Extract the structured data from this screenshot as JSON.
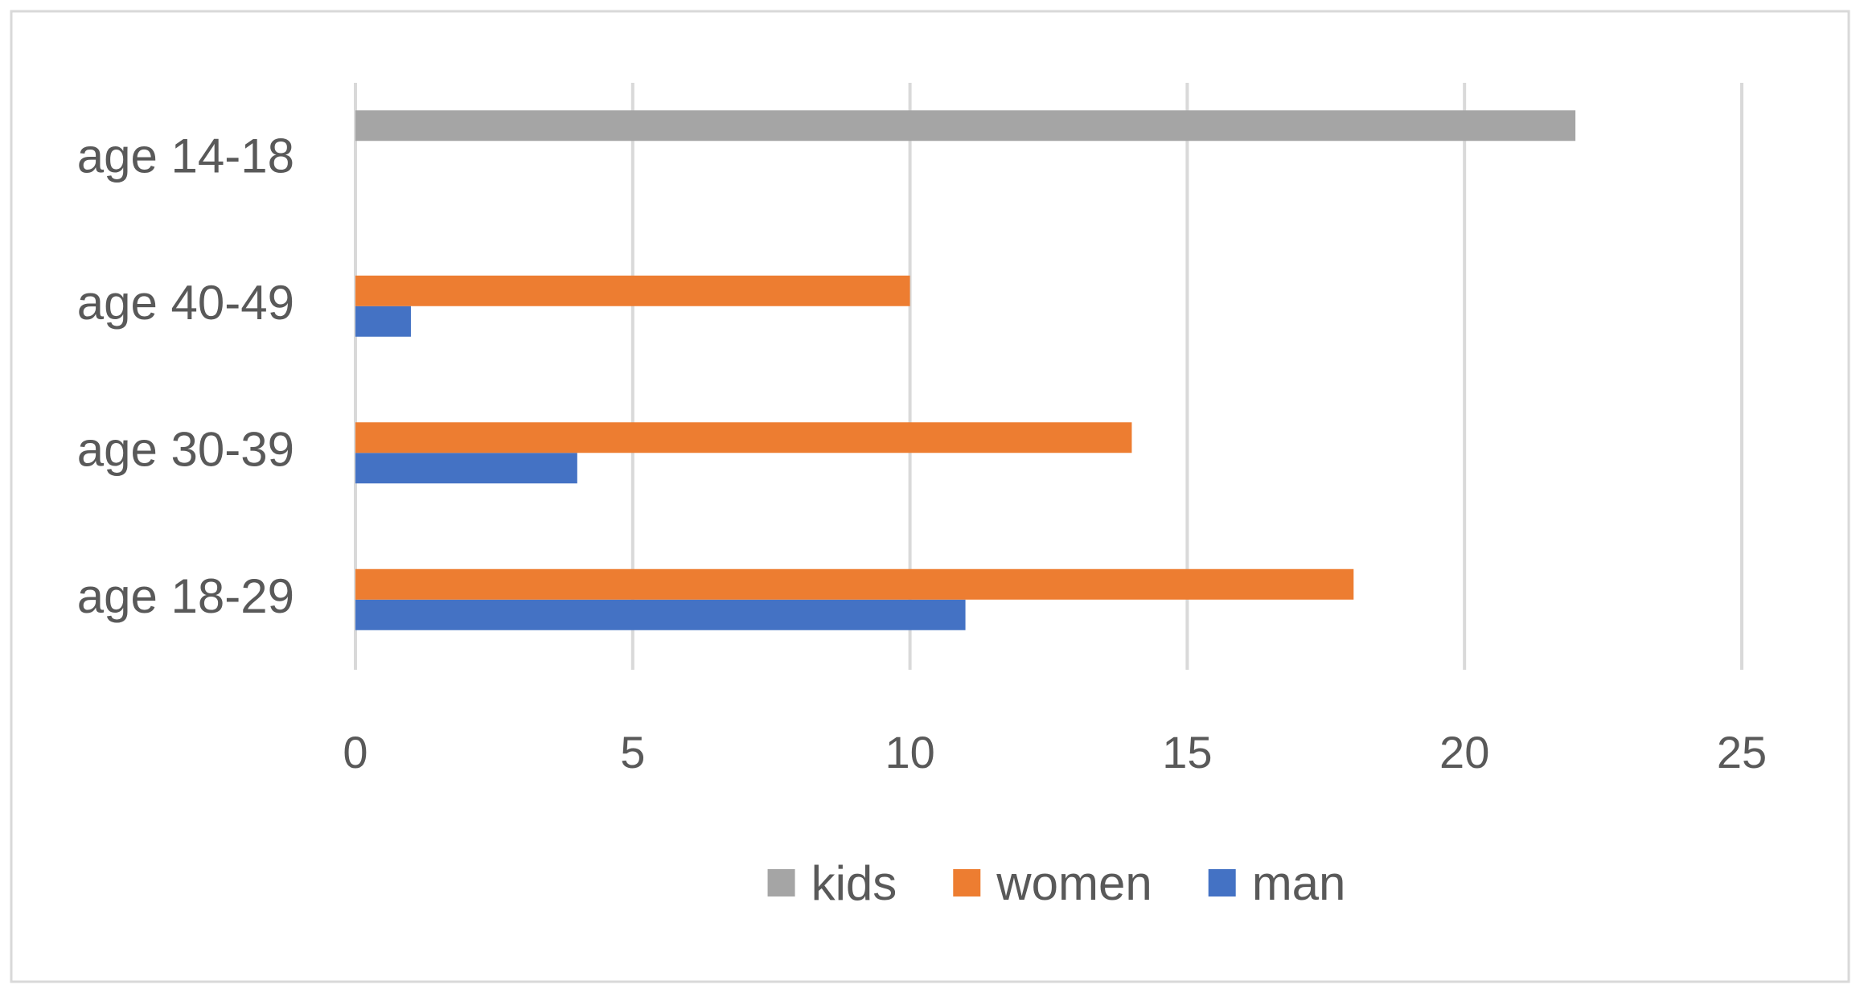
{
  "chart_data": {
    "type": "bar",
    "orientation": "horizontal",
    "categories": [
      "age 18-29",
      "age 30-39",
      "age 40-49",
      "age 14-18"
    ],
    "series": [
      {
        "name": "man",
        "values": [
          11,
          4,
          1,
          null
        ],
        "color": "#4472c4"
      },
      {
        "name": "women",
        "values": [
          18,
          14,
          10,
          null
        ],
        "color": "#ed7d31"
      },
      {
        "name": "kids",
        "values": [
          null,
          null,
          null,
          22
        ],
        "color": "#a5a5a5"
      }
    ],
    "x_ticks": [
      0,
      5,
      10,
      15,
      20,
      25
    ],
    "xlim": [
      0,
      25
    ],
    "grid": "vertical",
    "legend": {
      "placement": "bottom",
      "order": [
        "kids",
        "women",
        "man"
      ]
    },
    "title": "",
    "xlabel": "",
    "ylabel": ""
  }
}
